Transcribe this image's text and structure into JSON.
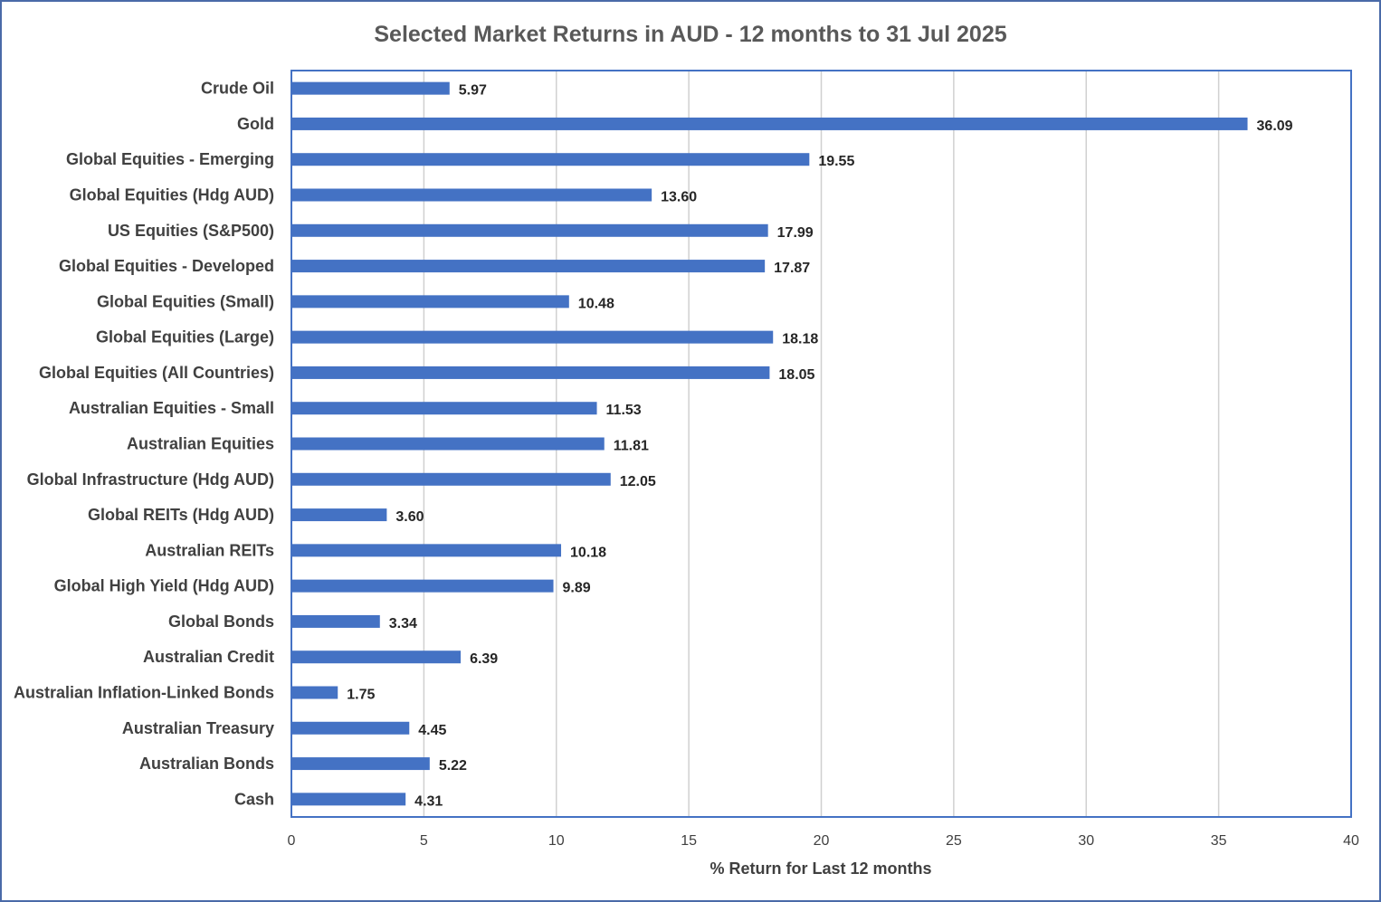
{
  "chart_data": {
    "type": "bar",
    "orientation": "horizontal",
    "title": "Selected Market Returns in AUD - 12 months to 31 Jul 2025",
    "xlabel": "% Return for Last 12 months",
    "ylabel": "",
    "xlim": [
      0,
      40
    ],
    "xticks": [
      0,
      5,
      10,
      15,
      20,
      25,
      30,
      35,
      40
    ],
    "grid": true,
    "legend": "none",
    "bar_color": "#4472c4",
    "categories": [
      "Crude Oil",
      "Gold",
      "Global Equities - Emerging",
      "Global Equities (Hdg AUD)",
      "US Equities (S&P500)",
      "Global Equities - Developed",
      "Global Equities (Small)",
      "Global Equities (Large)",
      "Global Equities (All Countries)",
      "Australian Equities - Small",
      "Australian Equities",
      "Global Infrastructure (Hdg AUD)",
      "Global REITs (Hdg AUD)",
      "Australian REITs",
      "Global High Yield (Hdg AUD)",
      "Global Bonds",
      "Australian Credit",
      "Australian Inflation-Linked Bonds",
      "Australian Treasury",
      "Australian Bonds",
      "Cash"
    ],
    "values": [
      5.97,
      36.09,
      19.55,
      13.6,
      17.99,
      17.87,
      10.48,
      18.18,
      18.05,
      11.53,
      11.81,
      12.05,
      3.6,
      10.18,
      9.89,
      3.34,
      6.39,
      1.75,
      4.45,
      5.22,
      4.31
    ],
    "value_labels": [
      "5.97",
      "36.09",
      "19.55",
      "13.60",
      "17.99",
      "17.87",
      "10.48",
      "18.18",
      "18.05",
      "11.53",
      "11.81",
      "12.05",
      "3.60",
      "10.18",
      "9.89",
      "3.34",
      "6.39",
      "1.75",
      "4.45",
      "5.22",
      "4.31"
    ]
  }
}
